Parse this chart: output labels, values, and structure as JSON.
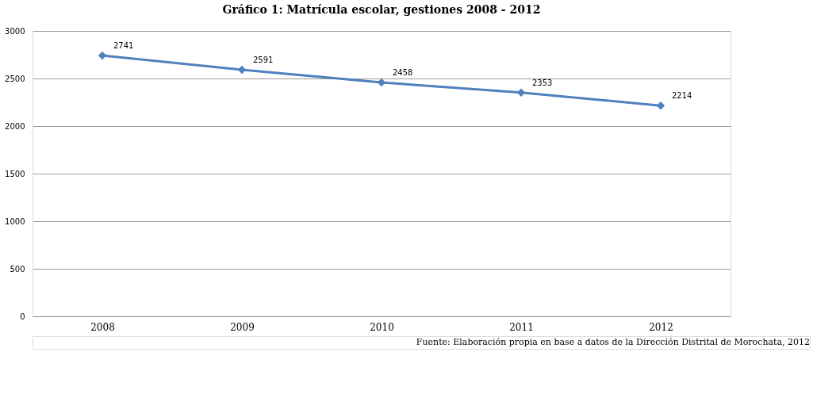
{
  "chart_data": {
    "type": "line",
    "title": "Gráfico 1: Matrícula escolar, gestiones 2008 - 2012",
    "categories": [
      "2008",
      "2009",
      "2010",
      "2011",
      "2012"
    ],
    "series": [
      {
        "color": "#4f81bd",
        "values": [
          2741,
          2591,
          2458,
          2353,
          2214
        ]
      }
    ],
    "ylim": [
      0,
      3000
    ],
    "yticks": [
      0,
      500,
      1000,
      1500,
      2000,
      2500,
      3000
    ],
    "grid": "y",
    "marker": "diamond",
    "line_style": "solid",
    "data_labels": true,
    "legend": false,
    "annotations": [
      "Fuente: Elaboración propia en base a datos de la Dirección Distrital de Morochata, 2012"
    ]
  }
}
